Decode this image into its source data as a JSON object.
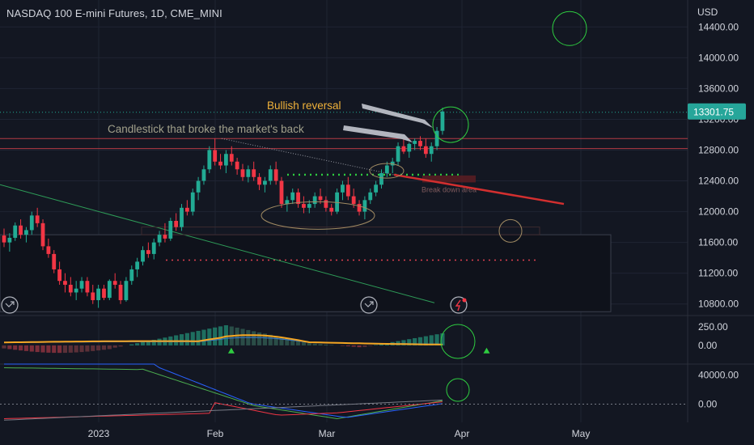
{
  "chart_title": "NASDAQ 100 E-mini Futures, 1D, CME_MINI",
  "currency": "USD",
  "colors": {
    "background": "#131722",
    "up": "#22ab94",
    "down": "#f23645",
    "annotation_green": "#2ecc40",
    "trend_red": "#d32f2f",
    "grid": "#1f2433",
    "price_tag": "#26a69a"
  },
  "chart_data": [
    {
      "type": "candlestick",
      "ylim": [
        10650,
        14750
      ],
      "y_ticks": [
        14400,
        14000,
        13600,
        13200,
        12800,
        12400,
        12000,
        11600,
        11200,
        10800
      ],
      "y_tick_labels": [
        "14400.00",
        "14000.00",
        "13600.00",
        "13200.00",
        "12800.00",
        "12400.00",
        "12000.00",
        "11600.00",
        "11200.00",
        "10800.00"
      ],
      "last_price": 13301.75,
      "last_price_label": "13301.75",
      "x_tick_labels": [
        {
          "label": "2023",
          "date": "2023-01-03"
        },
        {
          "label": "Feb",
          "date": "2023-02-01"
        },
        {
          "label": "Mar",
          "date": "2023-03-01"
        },
        {
          "label": "Apr",
          "date": "2023-04-03"
        },
        {
          "label": "May",
          "date": "2023-05-01"
        }
      ],
      "ohlc": [
        [
          11690,
          11780,
          11540,
          11600
        ],
        [
          11600,
          11720,
          11480,
          11660
        ],
        [
          11660,
          11860,
          11620,
          11820
        ],
        [
          11820,
          11900,
          11650,
          11700
        ],
        [
          11700,
          11800,
          11600,
          11760
        ],
        [
          11760,
          12000,
          11700,
          11950
        ],
        [
          11950,
          12050,
          11800,
          11850
        ],
        [
          11850,
          11900,
          11500,
          11550
        ],
        [
          11550,
          11650,
          11400,
          11450
        ],
        [
          11450,
          11500,
          11200,
          11250
        ],
        [
          11250,
          11350,
          11050,
          11100
        ],
        [
          11100,
          11200,
          10950,
          11050
        ],
        [
          11050,
          11150,
          10900,
          10950
        ],
        [
          10950,
          11100,
          10850,
          11000
        ],
        [
          11000,
          11150,
          10950,
          11100
        ],
        [
          11100,
          11150,
          10900,
          10950
        ],
        [
          10950,
          11050,
          10800,
          10850
        ],
        [
          10850,
          11050,
          10750,
          11000
        ],
        [
          11000,
          11050,
          10850,
          10880
        ],
        [
          10880,
          11120,
          10850,
          11100
        ],
        [
          11100,
          11200,
          11000,
          11050
        ],
        [
          11050,
          11100,
          10800,
          10850
        ],
        [
          10850,
          11150,
          10830,
          11100
        ],
        [
          11100,
          11300,
          11050,
          11250
        ],
        [
          11250,
          11400,
          11150,
          11350
        ],
        [
          11350,
          11550,
          11300,
          11500
        ],
        [
          11500,
          11600,
          11400,
          11450
        ],
        [
          11450,
          11650,
          11380,
          11600
        ],
        [
          11600,
          11750,
          11550,
          11700
        ],
        [
          11700,
          11850,
          11600,
          11650
        ],
        [
          11650,
          11920,
          11620,
          11880
        ],
        [
          11880,
          11980,
          11750,
          11800
        ],
        [
          11800,
          12100,
          11750,
          12050
        ],
        [
          12050,
          12150,
          11950,
          12000
        ],
        [
          12000,
          12300,
          11950,
          12250
        ],
        [
          12250,
          12450,
          12150,
          12400
        ],
        [
          12400,
          12600,
          12350,
          12550
        ],
        [
          12550,
          12850,
          12500,
          12800
        ],
        [
          12800,
          12950,
          12600,
          12650
        ],
        [
          12650,
          12750,
          12550,
          12600
        ],
        [
          12600,
          12800,
          12500,
          12750
        ],
        [
          12750,
          12850,
          12600,
          12650
        ],
        [
          12650,
          12700,
          12480,
          12550
        ],
        [
          12550,
          12620,
          12400,
          12450
        ],
        [
          12450,
          12600,
          12380,
          12550
        ],
        [
          12550,
          12650,
          12400,
          12450
        ],
        [
          12450,
          12500,
          12280,
          12350
        ],
        [
          12350,
          12450,
          12250,
          12400
        ],
        [
          12400,
          12600,
          12350,
          12550
        ],
        [
          12550,
          12650,
          12350,
          12400
        ],
        [
          12400,
          12450,
          12050,
          12100
        ],
        [
          12100,
          12200,
          12000,
          12150
        ],
        [
          12150,
          12300,
          12100,
          12250
        ],
        [
          12250,
          12300,
          12050,
          12100
        ],
        [
          12100,
          12200,
          11980,
          12050
        ],
        [
          12050,
          12150,
          11980,
          12100
        ],
        [
          12100,
          12250,
          12050,
          12200
        ],
        [
          12200,
          12300,
          12100,
          12150
        ],
        [
          12150,
          12200,
          12000,
          12050
        ],
        [
          12050,
          12100,
          11950,
          12000
        ],
        [
          12000,
          12300,
          11970,
          12250
        ],
        [
          12250,
          12400,
          12150,
          12350
        ],
        [
          12350,
          12450,
          12150,
          12200
        ],
        [
          12200,
          12300,
          12050,
          12100
        ],
        [
          12100,
          12150,
          11950,
          12000
        ],
        [
          12000,
          12200,
          11900,
          12150
        ],
        [
          12150,
          12300,
          12100,
          12250
        ],
        [
          12250,
          12400,
          12200,
          12350
        ],
        [
          12350,
          12550,
          12300,
          12500
        ],
        [
          12500,
          12650,
          12450,
          12600
        ],
        [
          12600,
          12700,
          12500,
          12650
        ],
        [
          12650,
          12900,
          12600,
          12850
        ],
        [
          12850,
          12950,
          12750,
          12780
        ],
        [
          12780,
          12900,
          12700,
          12880
        ],
        [
          12880,
          12950,
          12800,
          12920
        ],
        [
          12920,
          12980,
          12800,
          12850
        ],
        [
          12850,
          12950,
          12700,
          12750
        ],
        [
          12750,
          12900,
          12650,
          12850
        ],
        [
          12850,
          13100,
          12800,
          13050
        ],
        [
          13050,
          13350,
          13000,
          13301.75
        ]
      ],
      "levels": [
        12950,
        12820
      ],
      "support_dotted": 12480,
      "lower_dotted": 11370,
      "breakdown_box": [
        12380,
        12470
      ]
    },
    {
      "type": "histogram+line",
      "ylim": [
        -250,
        400
      ],
      "y_tick_labels": [
        "250.00",
        "0.00"
      ],
      "y_ticks": [
        250,
        0
      ]
    },
    {
      "type": "line",
      "ylim": [
        -25000,
        55000
      ],
      "y_tick_labels": [
        "40000.00",
        "0.00"
      ],
      "y_ticks": [
        40000,
        0
      ]
    }
  ],
  "annotations": {
    "bullish": "Bullish reversal",
    "candlestick": "Candlestick that broke the market's back",
    "breakdown": "Break down area"
  }
}
